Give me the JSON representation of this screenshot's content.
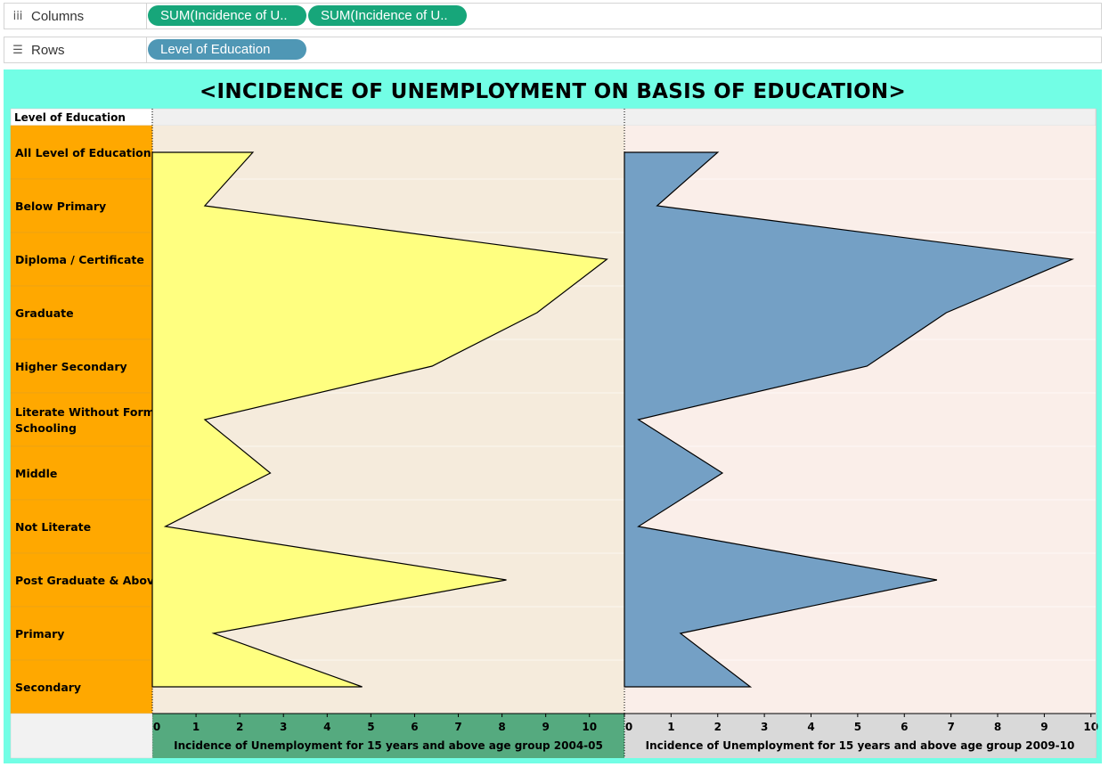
{
  "shelves": {
    "columns": {
      "label": "Columns",
      "icon": "iii",
      "pills": [
        "SUM(Incidence of U..",
        "SUM(Incidence of U.."
      ]
    },
    "rows": {
      "label": "Rows",
      "icon": "☰",
      "pills": [
        "Level of Education"
      ]
    }
  },
  "colors": {
    "pill_green": "#17a67a",
    "pill_blue": "#4f97b5",
    "background": "#72fee5",
    "category_label_bg": "#ffa800",
    "pane1_bg": "#f5ebdc",
    "pane2_bg": "#faeee9",
    "area1": "#ffff80",
    "area2": "#74a0c5",
    "axis1_bg": "#55aa7f",
    "axis2_bg": "#d9d9d9"
  },
  "chart_data": {
    "type": "area",
    "title": "<INCIDENCE OF UNEMPLOYMENT ON BASIS OF EDUCATION>",
    "row_header": "Level of Education",
    "categories": [
      "All Level of Education",
      "Below Primary",
      "Diploma / Certificate",
      "Graduate",
      "Higher Secondary",
      "Literate Without Formal Schooling",
      "Middle",
      "Not Literate",
      "Post Graduate & Above",
      "Primary",
      "Secondary"
    ],
    "series": [
      {
        "name": "Incidence of Unemployment for 15 years and above age group 2004-05",
        "values": [
          2.3,
          1.2,
          10.4,
          8.8,
          6.4,
          1.2,
          2.7,
          0.3,
          8.1,
          1.4,
          4.8
        ],
        "xlim": [
          0,
          10.8
        ],
        "ticks": [
          0,
          1,
          2,
          3,
          4,
          5,
          6,
          7,
          8,
          9,
          10
        ]
      },
      {
        "name": "Incidence of Unemployment for 15 years and above age group 2009-10",
        "values": [
          2.0,
          0.7,
          9.6,
          6.9,
          5.2,
          0.3,
          2.1,
          0.3,
          6.7,
          1.2,
          2.7
        ],
        "xlim": [
          0,
          10.1
        ],
        "ticks": [
          0,
          1,
          2,
          3,
          4,
          5,
          6,
          7,
          8,
          9,
          10
        ]
      }
    ],
    "xlabels": [
      "Incidence of Unemployment for 15 years and above age group 2004-05",
      "Incidence of Unemployment for 15 years and above age group 2009-10"
    ]
  }
}
